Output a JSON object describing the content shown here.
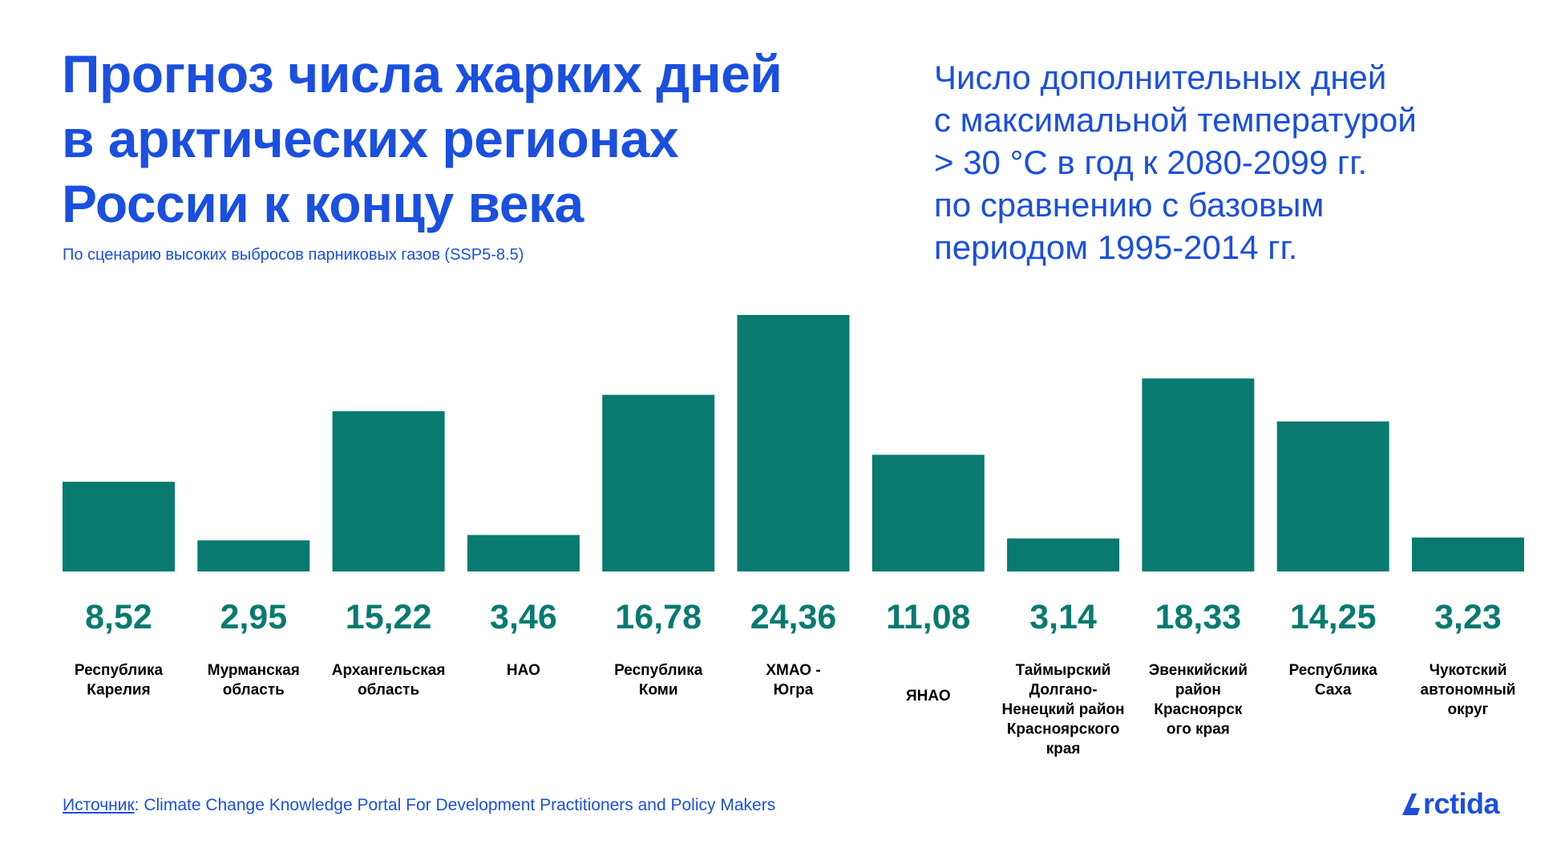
{
  "header": {
    "title_lines": [
      "Прогноз числа жарких дней",
      "в арктических регионах",
      "России к концу века"
    ],
    "subtitle": "По сценарию высоких выбросов парниковых газов (SSP5-8.5)",
    "description_lines": [
      "Число дополнительных дней",
      "с максимальной температурой",
      "> 30 °C в год к 2080-2099 гг.",
      "по сравнению с базовым",
      "периодом 1995-2014 гг."
    ]
  },
  "chart_data": {
    "type": "bar",
    "categories": [
      "Республика Карелия",
      "Мурманская область",
      "Архангельская область",
      "НАО",
      "Республика Коми",
      "ХМАО - Югра",
      "ЯНАО",
      "Таймырский Долгано-Ненецкий район Красноярского края",
      "Эвенкийский район Красноярского края",
      "Республика Саха",
      "Чукотский автономный округ"
    ],
    "category_label_lines": [
      [
        "Республика",
        "Карелия"
      ],
      [
        "Мурманская",
        "область"
      ],
      [
        "Архангельская",
        "область"
      ],
      [
        "НАО"
      ],
      [
        "Республика",
        "Коми"
      ],
      [
        "ХМАО -",
        "Югра"
      ],
      [
        "ЯНАО"
      ],
      [
        "Таймырский",
        "Долгано-",
        "Ненецкий район",
        "Красноярского",
        "края"
      ],
      [
        "Эвенкийский",
        "район",
        "Красноярск",
        "ого края"
      ],
      [
        "Республика",
        "Саха"
      ],
      [
        "Чукотский",
        "автономный",
        "округ"
      ]
    ],
    "values": [
      8.52,
      2.95,
      15.22,
      3.46,
      16.78,
      24.36,
      11.08,
      3.14,
      18.33,
      14.25,
      3.23
    ],
    "value_labels": [
      "8,52",
      "2,95",
      "15,22",
      "3,46",
      "16,78",
      "24,36",
      "11,08",
      "3,14",
      "18,33",
      "14,25",
      "3,23"
    ],
    "bar_color": "#087a70",
    "value_label_color": "#087a70"
  },
  "footer": {
    "source_key": "Источник",
    "source_text": ": Climate Change Knowledge Portal For Development Practitioners and Policy Makers",
    "logo_text": "rctida"
  },
  "colors": {
    "accent": "#1a4fe0",
    "bar": "#087a70"
  },
  "icons": {
    "logo": "arctida-logo-icon"
  }
}
